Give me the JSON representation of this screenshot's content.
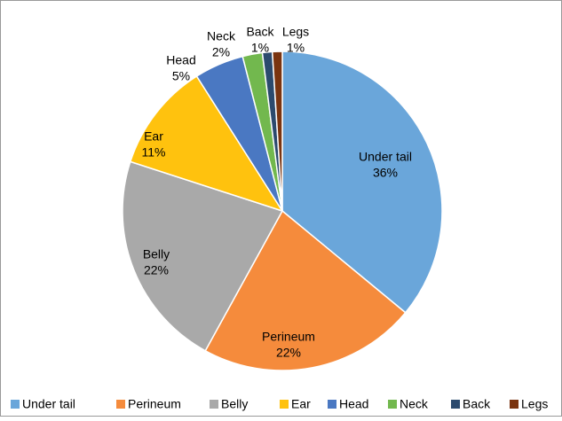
{
  "chart_data": {
    "type": "pie",
    "categories": [
      "Under tail",
      "Perineum",
      "Belly",
      "Ear",
      "Head",
      "Neck",
      "Back",
      "Legs"
    ],
    "values": [
      36,
      22,
      22,
      11,
      5,
      2,
      1,
      1
    ],
    "value_labels": [
      "36%",
      "22%",
      "22%",
      "11%",
      "5%",
      "2%",
      "1%",
      "1%"
    ],
    "colors": [
      "#6aa6da",
      "#f58b3c",
      "#a9a9a9",
      "#ffc20e",
      "#4a78c2",
      "#72b84e",
      "#2b4a6e",
      "#7a3410"
    ],
    "legend": "bottom"
  }
}
